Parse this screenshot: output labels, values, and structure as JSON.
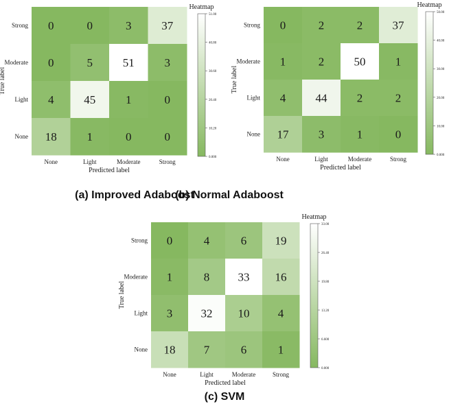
{
  "chart_data": [
    {
      "type": "heatmap",
      "caption": "(a) Improved Adaboost",
      "xlabel": "Predicted label",
      "ylabel": "True label",
      "colorbar_title": "Heatmap",
      "colorbar_ticks": [
        "0.000",
        "10.20",
        "20.40",
        "30.60",
        "40.80",
        "51.00"
      ],
      "colorbar_range": [
        0,
        51
      ],
      "x_categories": [
        "None",
        "Light",
        "Moderate",
        "Strong"
      ],
      "y_categories": [
        "Strong",
        "Moderate",
        "Light",
        "None"
      ],
      "matrix": [
        [
          0,
          0,
          3,
          37
        ],
        [
          0,
          5,
          51,
          3
        ],
        [
          4,
          45,
          1,
          0
        ],
        [
          18,
          1,
          0,
          0
        ]
      ]
    },
    {
      "type": "heatmap",
      "caption": "(b) Normal Adaboost",
      "xlabel": "Predicted label",
      "ylabel": "True label",
      "colorbar_title": "Heatmap",
      "colorbar_ticks": [
        "0.000",
        "10.00",
        "20.00",
        "30.00",
        "40.00",
        "50.00"
      ],
      "colorbar_range": [
        0,
        50
      ],
      "x_categories": [
        "None",
        "Light",
        "Moderate",
        "Strong"
      ],
      "y_categories": [
        "Strong",
        "Moderate",
        "Light",
        "None"
      ],
      "matrix": [
        [
          0,
          2,
          2,
          37
        ],
        [
          1,
          2,
          50,
          1
        ],
        [
          4,
          44,
          2,
          2
        ],
        [
          17,
          3,
          1,
          0
        ]
      ]
    },
    {
      "type": "heatmap",
      "caption": "(c) SVM",
      "xlabel": "Predicted label",
      "ylabel": "True label",
      "colorbar_title": "Heatmap",
      "colorbar_ticks": [
        "0.000",
        "6.600",
        "13.20",
        "19.80",
        "26.40",
        "33.00"
      ],
      "colorbar_range": [
        0,
        33
      ],
      "x_categories": [
        "None",
        "Light",
        "Moderate",
        "Strong"
      ],
      "y_categories": [
        "Strong",
        "Moderate",
        "Light",
        "None"
      ],
      "matrix": [
        [
          0,
          4,
          6,
          19
        ],
        [
          1,
          8,
          33,
          16
        ],
        [
          3,
          32,
          10,
          4
        ],
        [
          18,
          7,
          6,
          1
        ]
      ]
    }
  ],
  "colors": {
    "low": "#86b860",
    "high": "#ffffff",
    "text": "#1a1a1a"
  }
}
